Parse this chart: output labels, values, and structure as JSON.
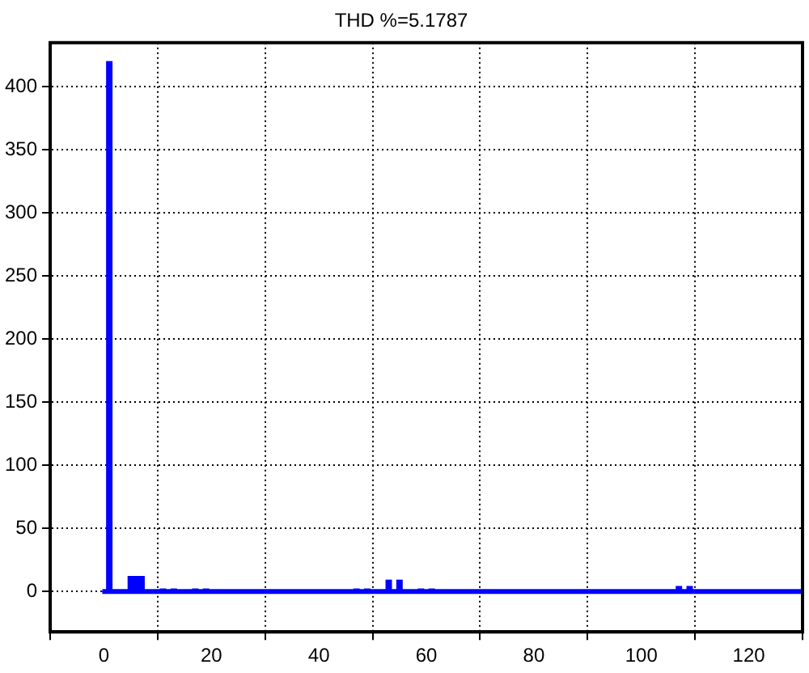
{
  "chart_data": {
    "type": "bar",
    "title": "THD %=5.1787",
    "x": [
      0,
      1,
      2,
      3,
      4,
      5,
      6,
      7,
      8,
      9,
      10,
      11,
      12,
      13,
      14,
      15,
      16,
      17,
      18,
      19,
      20,
      21,
      22,
      23,
      24,
      25,
      26,
      27,
      28,
      29,
      30,
      31,
      32,
      33,
      34,
      35,
      36,
      37,
      38,
      39,
      40,
      41,
      42,
      43,
      44,
      45,
      46,
      47,
      48,
      49,
      50,
      51,
      52,
      53,
      54,
      55,
      56,
      57,
      58,
      59,
      60,
      61,
      62,
      63,
      64,
      65,
      66,
      67,
      68,
      69,
      70,
      71,
      72,
      73,
      74,
      75,
      76,
      77,
      78,
      79,
      80,
      81,
      82,
      83,
      84,
      85,
      86,
      87,
      88,
      89,
      90,
      91,
      92,
      93,
      94,
      95,
      96,
      97,
      98,
      99,
      100,
      101,
      102,
      103,
      104,
      105,
      106,
      107,
      108,
      109,
      110,
      111,
      112,
      113,
      114,
      115,
      116,
      117,
      118,
      119,
      120,
      121,
      122,
      123,
      124,
      125,
      126,
      127,
      128,
      129
    ],
    "values": [
      0,
      420,
      0,
      0,
      0,
      12,
      12,
      12,
      0,
      0,
      0,
      2,
      0,
      2,
      0,
      0,
      0,
      2,
      0,
      2,
      0,
      0,
      0,
      0,
      0,
      1,
      0,
      0,
      0,
      1,
      0,
      0,
      0,
      0,
      0,
      1,
      0,
      0,
      0,
      0,
      0,
      1,
      0,
      0,
      0,
      0,
      0,
      2,
      0,
      2,
      0,
      0,
      0,
      9,
      0,
      9,
      0,
      0,
      0,
      2,
      0,
      2,
      0,
      0,
      0,
      0,
      0,
      0,
      0,
      0,
      0,
      0,
      0,
      0,
      0,
      0,
      0,
      0,
      0,
      0,
      0,
      0,
      0,
      0,
      0,
      0,
      0,
      0,
      0,
      0,
      0,
      0,
      0,
      0,
      0,
      0,
      0,
      0,
      0,
      0,
      0,
      1,
      0,
      0,
      0,
      0,
      0,
      4,
      0,
      4,
      0,
      0,
      0,
      0,
      0,
      0,
      0,
      0,
      0,
      0,
      0,
      0,
      0,
      0,
      0,
      0,
      0,
      0,
      0,
      0
    ],
    "color": "#0000ff",
    "ref_lines": [
      {
        "axis": "y",
        "value": 0,
        "color": "#0000ff"
      }
    ],
    "xlim": [
      -10,
      130
    ],
    "xticks": [
      0,
      20,
      40,
      60,
      80,
      100,
      120
    ],
    "ylim": [
      -32,
      435
    ],
    "yticks": [
      0,
      50,
      100,
      150,
      200,
      250,
      300,
      350,
      400
    ],
    "grid": true
  }
}
